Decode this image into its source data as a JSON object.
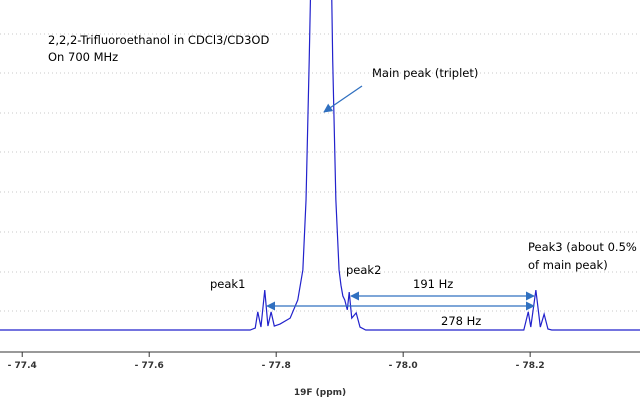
{
  "chart_data": {
    "type": "line",
    "annotations": [
      "2,2,2-Trifluoroethanol in CDCl3/CD3OD",
      "On 700 MHz",
      "Main peak (triplet)",
      "peak1",
      "peak2",
      "191 Hz",
      "278 Hz",
      "Peak3 (about 0.5%",
      "of main peak)"
    ],
    "xlabel": "19F (ppm)",
    "x": [
      -77.365,
      -77.759,
      -77.767,
      -77.771,
      -77.776,
      -77.782,
      -77.787,
      -77.792,
      -77.797,
      -77.806,
      -77.822,
      -77.834,
      -77.842,
      -77.847,
      -77.852,
      -77.856,
      -77.886,
      -77.889,
      -77.894,
      -77.899,
      -77.902,
      -77.905,
      -77.908,
      -77.912,
      -77.915,
      -77.919,
      -77.926,
      -77.932,
      -77.941,
      -78.19,
      -78.197,
      -78.201,
      -78.209,
      -78.216,
      -78.222,
      -78.228,
      -78.234,
      -78.373
    ],
    "values": [
      0,
      0,
      0.6,
      5.5,
      0.9,
      12.1,
      1.2,
      5.5,
      1.2,
      1.8,
      3.6,
      9.1,
      18.2,
      39.4,
      81.8,
      120,
      120,
      81.8,
      39.4,
      18.2,
      13.6,
      10.3,
      9.1,
      6.1,
      11.5,
      3.6,
      5.2,
      0.9,
      0,
      0,
      5.5,
      0.9,
      12.1,
      0.9,
      4.8,
      0.3,
      0,
      0
    ],
    "color": "#2222cc",
    "xlim": [
      -77.365,
      -78.373
    ],
    "xticks": [
      {
        "value": -77.4,
        "label": "- 77.4"
      },
      {
        "value": -77.6,
        "label": "- 77.6"
      },
      {
        "value": -77.8,
        "label": "- 77.8"
      },
      {
        "value": -78.0,
        "label": "- 78.0"
      },
      {
        "value": -78.2,
        "label": "- 78.2"
      }
    ],
    "ylim": [
      0,
      100
    ]
  }
}
